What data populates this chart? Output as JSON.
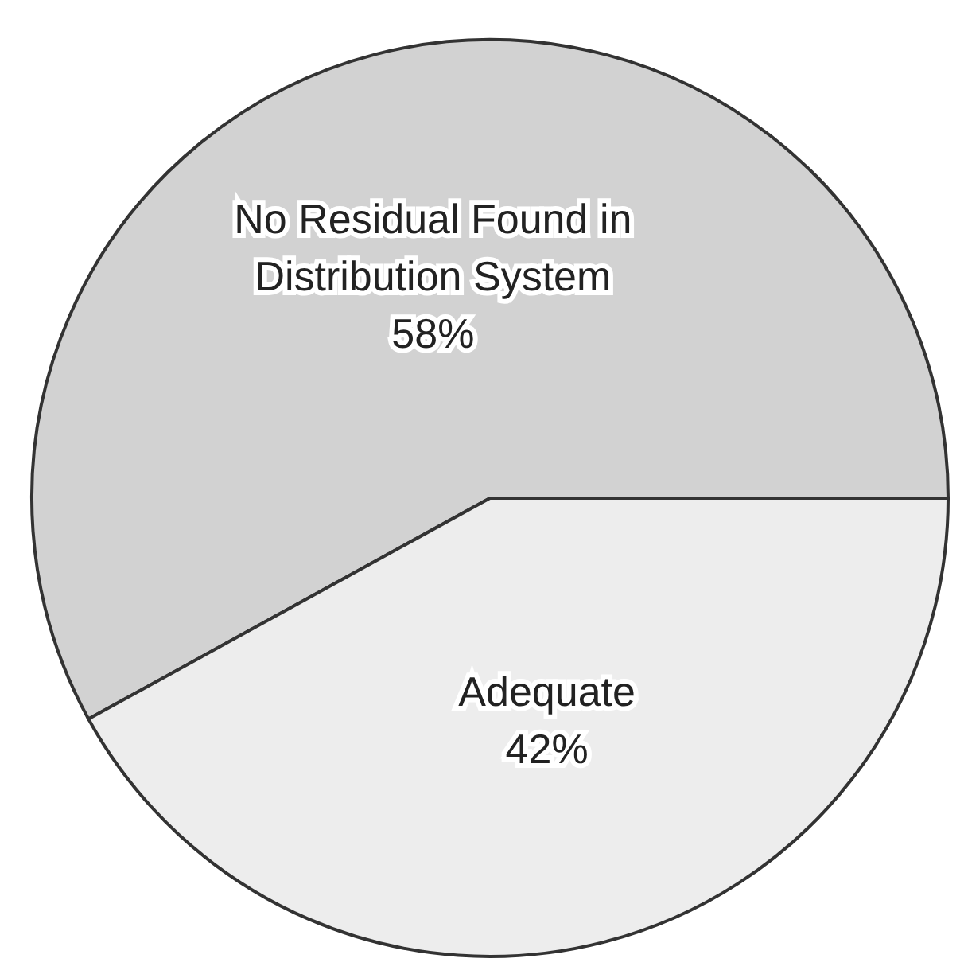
{
  "chart_data": {
    "type": "pie",
    "categories": [
      "No Residual Found in Distribution System",
      "Adequate"
    ],
    "values": [
      58,
      42
    ],
    "colors": [
      "#d2d2d2",
      "#ededed"
    ],
    "value_labels": [
      "58%",
      "42%"
    ]
  }
}
